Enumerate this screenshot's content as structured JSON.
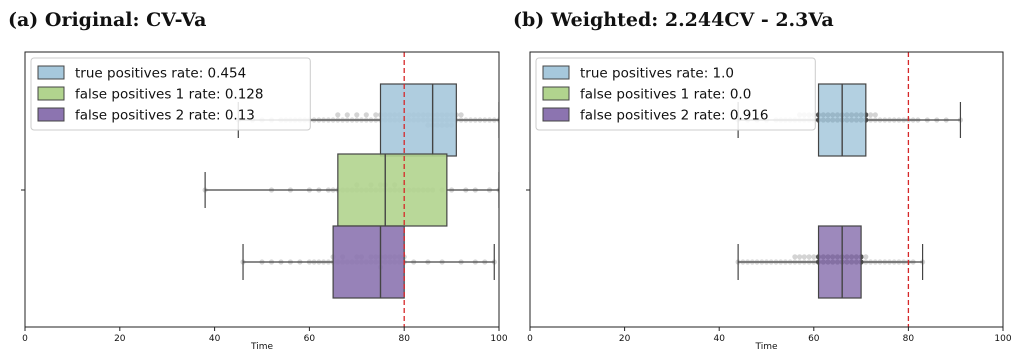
{
  "chart_data": [
    {
      "type": "box",
      "title": "(a) Original: CV-Va",
      "xlabel": "Time",
      "ylabel": "",
      "xlim": [
        0,
        100
      ],
      "xticks": [
        0,
        20,
        40,
        60,
        80,
        100
      ],
      "threshold": 80,
      "threshold_color": "#d62728",
      "legend": {
        "placement": "top-left"
      },
      "overlay": "swarm",
      "series": [
        {
          "name": "true positives rate: 0.454",
          "color": "#a6c8dc",
          "whisker_low": 45,
          "q1": 75,
          "median": 86,
          "q3": 91,
          "whisker_high": 100,
          "points": [
            45,
            48,
            50,
            52,
            54,
            55,
            56,
            57,
            58,
            59,
            60,
            61,
            62,
            63,
            64,
            65,
            66,
            66,
            67,
            68,
            68,
            69,
            70,
            70,
            71,
            72,
            72,
            73,
            74,
            74,
            75,
            75,
            76,
            76,
            77,
            77,
            78,
            78,
            79,
            79,
            80,
            80,
            81,
            81,
            82,
            82,
            83,
            83,
            84,
            84,
            85,
            85,
            85,
            86,
            86,
            86,
            87,
            87,
            87,
            88,
            88,
            88,
            89,
            89,
            89,
            90,
            90,
            90,
            91,
            91,
            92,
            92,
            93,
            94,
            95,
            96,
            97,
            98,
            99,
            100
          ]
        },
        {
          "name": "false positives 1 rate: 0.128",
          "color": "#b1d48e",
          "whisker_low": 38,
          "q1": 66,
          "median": 76,
          "q3": 89,
          "whisker_high": 100,
          "points": [
            38,
            52,
            56,
            60,
            62,
            64,
            65,
            66,
            67,
            68,
            69,
            70,
            70,
            71,
            72,
            73,
            73,
            74,
            75,
            75,
            76,
            76,
            77,
            78,
            78,
            79,
            80,
            80,
            81,
            82,
            83,
            84,
            85,
            86,
            88,
            90,
            93,
            95,
            98,
            100
          ]
        },
        {
          "name": "false positives 2 rate: 0.13",
          "color": "#8c74b0",
          "whisker_low": 46,
          "q1": 65,
          "median": 75,
          "q3": 80,
          "whisker_high": 99,
          "points": [
            46,
            50,
            52,
            54,
            56,
            58,
            60,
            61,
            62,
            63,
            64,
            65,
            65,
            66,
            67,
            67,
            68,
            69,
            70,
            70,
            71,
            71,
            72,
            73,
            73,
            74,
            74,
            75,
            75,
            75,
            76,
            76,
            77,
            77,
            78,
            78,
            79,
            79,
            80,
            80,
            82,
            85,
            88,
            92,
            95,
            97,
            99
          ]
        }
      ]
    },
    {
      "type": "box",
      "title": "(b) Weighted: 2.244CV - 2.3Va",
      "xlabel": "Time",
      "ylabel": "",
      "xlim": [
        0,
        100
      ],
      "xticks": [
        0,
        20,
        40,
        60,
        80,
        100
      ],
      "threshold": 80,
      "threshold_color": "#d62728",
      "legend": {
        "placement": "top-left"
      },
      "overlay": "swarm",
      "series": [
        {
          "name": "true positives rate: 1.0",
          "color": "#a6c8dc",
          "whisker_low": 44,
          "q1": 61,
          "median": 66,
          "q3": 71,
          "whisker_high": 91,
          "points": [
            44,
            46,
            48,
            50,
            52,
            53,
            54,
            55,
            56,
            57,
            57,
            58,
            58,
            59,
            59,
            60,
            60,
            61,
            61,
            62,
            62,
            63,
            63,
            64,
            64,
            65,
            65,
            66,
            66,
            67,
            67,
            68,
            68,
            69,
            69,
            70,
            70,
            71,
            71,
            72,
            72,
            73,
            73,
            74,
            75,
            76,
            77,
            78,
            79,
            80,
            81,
            82,
            84,
            86,
            88,
            91
          ]
        },
        {
          "name": "false positives 1 rate: 0.0",
          "color": "#b1d48e"
        },
        {
          "name": "false positives 2 rate: 0.916",
          "color": "#8c74b0",
          "whisker_low": 44,
          "q1": 61,
          "median": 66,
          "q3": 70,
          "whisker_high": 83,
          "points": [
            44,
            45,
            46,
            47,
            48,
            49,
            50,
            51,
            52,
            53,
            54,
            55,
            56,
            56,
            57,
            57,
            58,
            58,
            59,
            59,
            60,
            60,
            61,
            61,
            62,
            62,
            63,
            63,
            64,
            64,
            65,
            65,
            66,
            66,
            67,
            67,
            68,
            68,
            69,
            69,
            70,
            70,
            71,
            71,
            72,
            73,
            74,
            75,
            76,
            77,
            78,
            79,
            80,
            81,
            83
          ]
        }
      ]
    }
  ]
}
